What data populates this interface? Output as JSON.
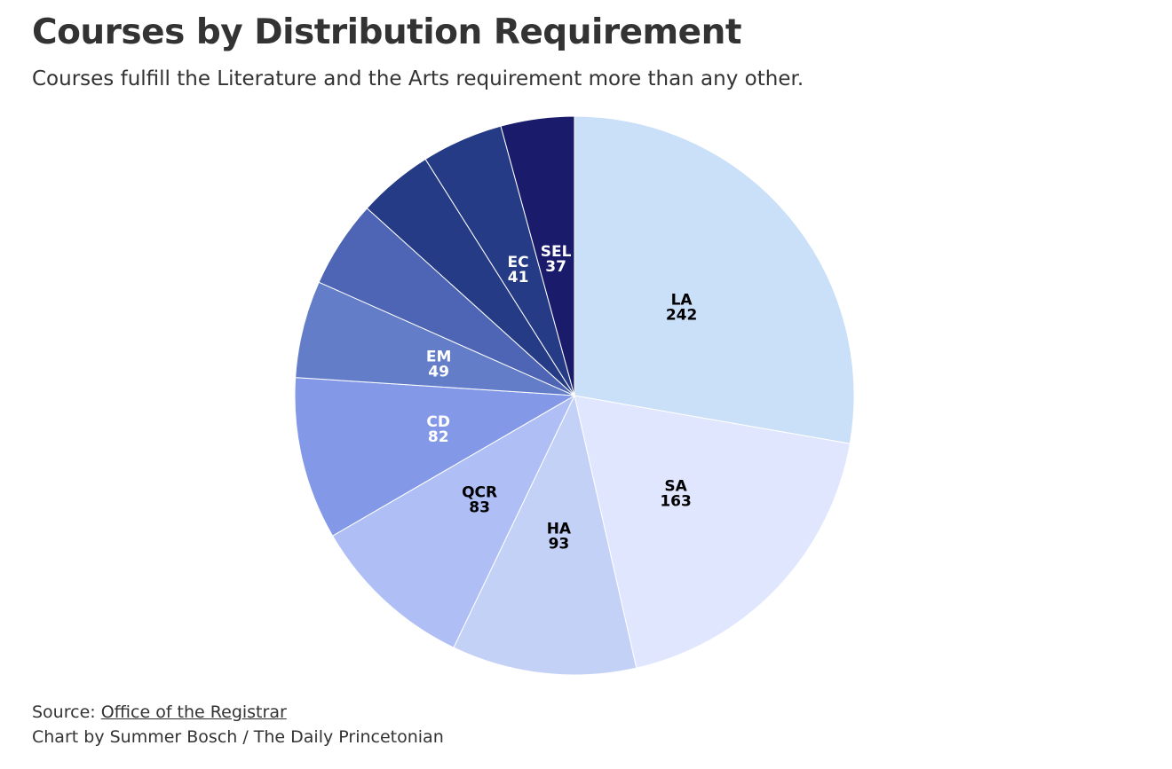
{
  "header": {
    "title": "Courses by Distribution Requirement",
    "subtitle": "Courses fulfill the Literature and the Arts requirement more than any other."
  },
  "footer": {
    "source_prefix": "Source: ",
    "source_link": "Office of the Registrar",
    "credit": "Chart by Summer Bosch / The Daily Princetonian"
  },
  "chart_data": {
    "type": "pie",
    "title": "Courses by Distribution Requirement",
    "start_angle": "12 o'clock",
    "direction": "clockwise",
    "categories": [
      "LA",
      "SA",
      "HA",
      "QCR",
      "CD",
      "EM",
      "",
      "",
      "EC",
      "SEL"
    ],
    "values": [
      242,
      163,
      93,
      83,
      82,
      49,
      44,
      38,
      41,
      37
    ],
    "colors": [
      "#cadff8",
      "#e0e6fd",
      "#c4d1f7",
      "#afbff6",
      "#8399e8",
      "#637dc8",
      "#4d65b4",
      "#253b85",
      "#253b85",
      "#1b1b6b"
    ],
    "label_colors": [
      "#000000",
      "#000000",
      "#000000",
      "#000000",
      "#ffffff",
      "#ffffff",
      "#ffffff",
      "#ffffff",
      "#ffffff",
      "#ffffff"
    ]
  }
}
